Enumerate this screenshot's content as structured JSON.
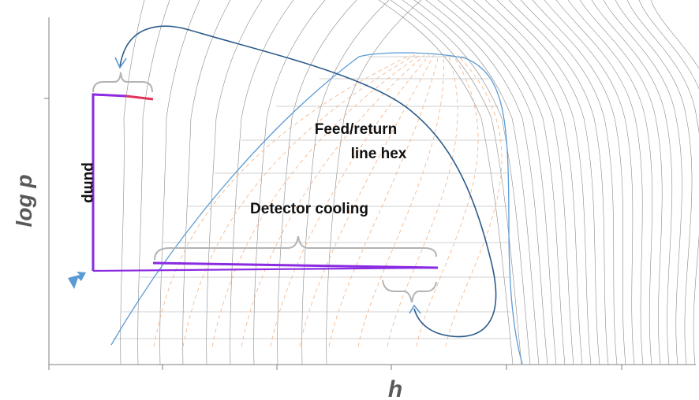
{
  "diagram": {
    "x_axis_label": "h",
    "y_axis_label": "log p",
    "annotations": {
      "pump": "pump",
      "feed_return_line1": "Feed/return",
      "feed_return_line2": "line hex",
      "detector_cooling": "Detector cooling"
    },
    "colors": {
      "axis": "#7f7f7f",
      "isotherm": "#8a8a8a",
      "isobar": "#a6a6a6",
      "dome": "#5b9bd5",
      "quality_lines": "#f4b183",
      "cycle": "#8a2be2",
      "cycle_pump_end": "#e0345a",
      "return_arrow": "#2e5c8a",
      "brace": "#b3b3b3",
      "start_marker": "#5b9bd5"
    }
  }
}
